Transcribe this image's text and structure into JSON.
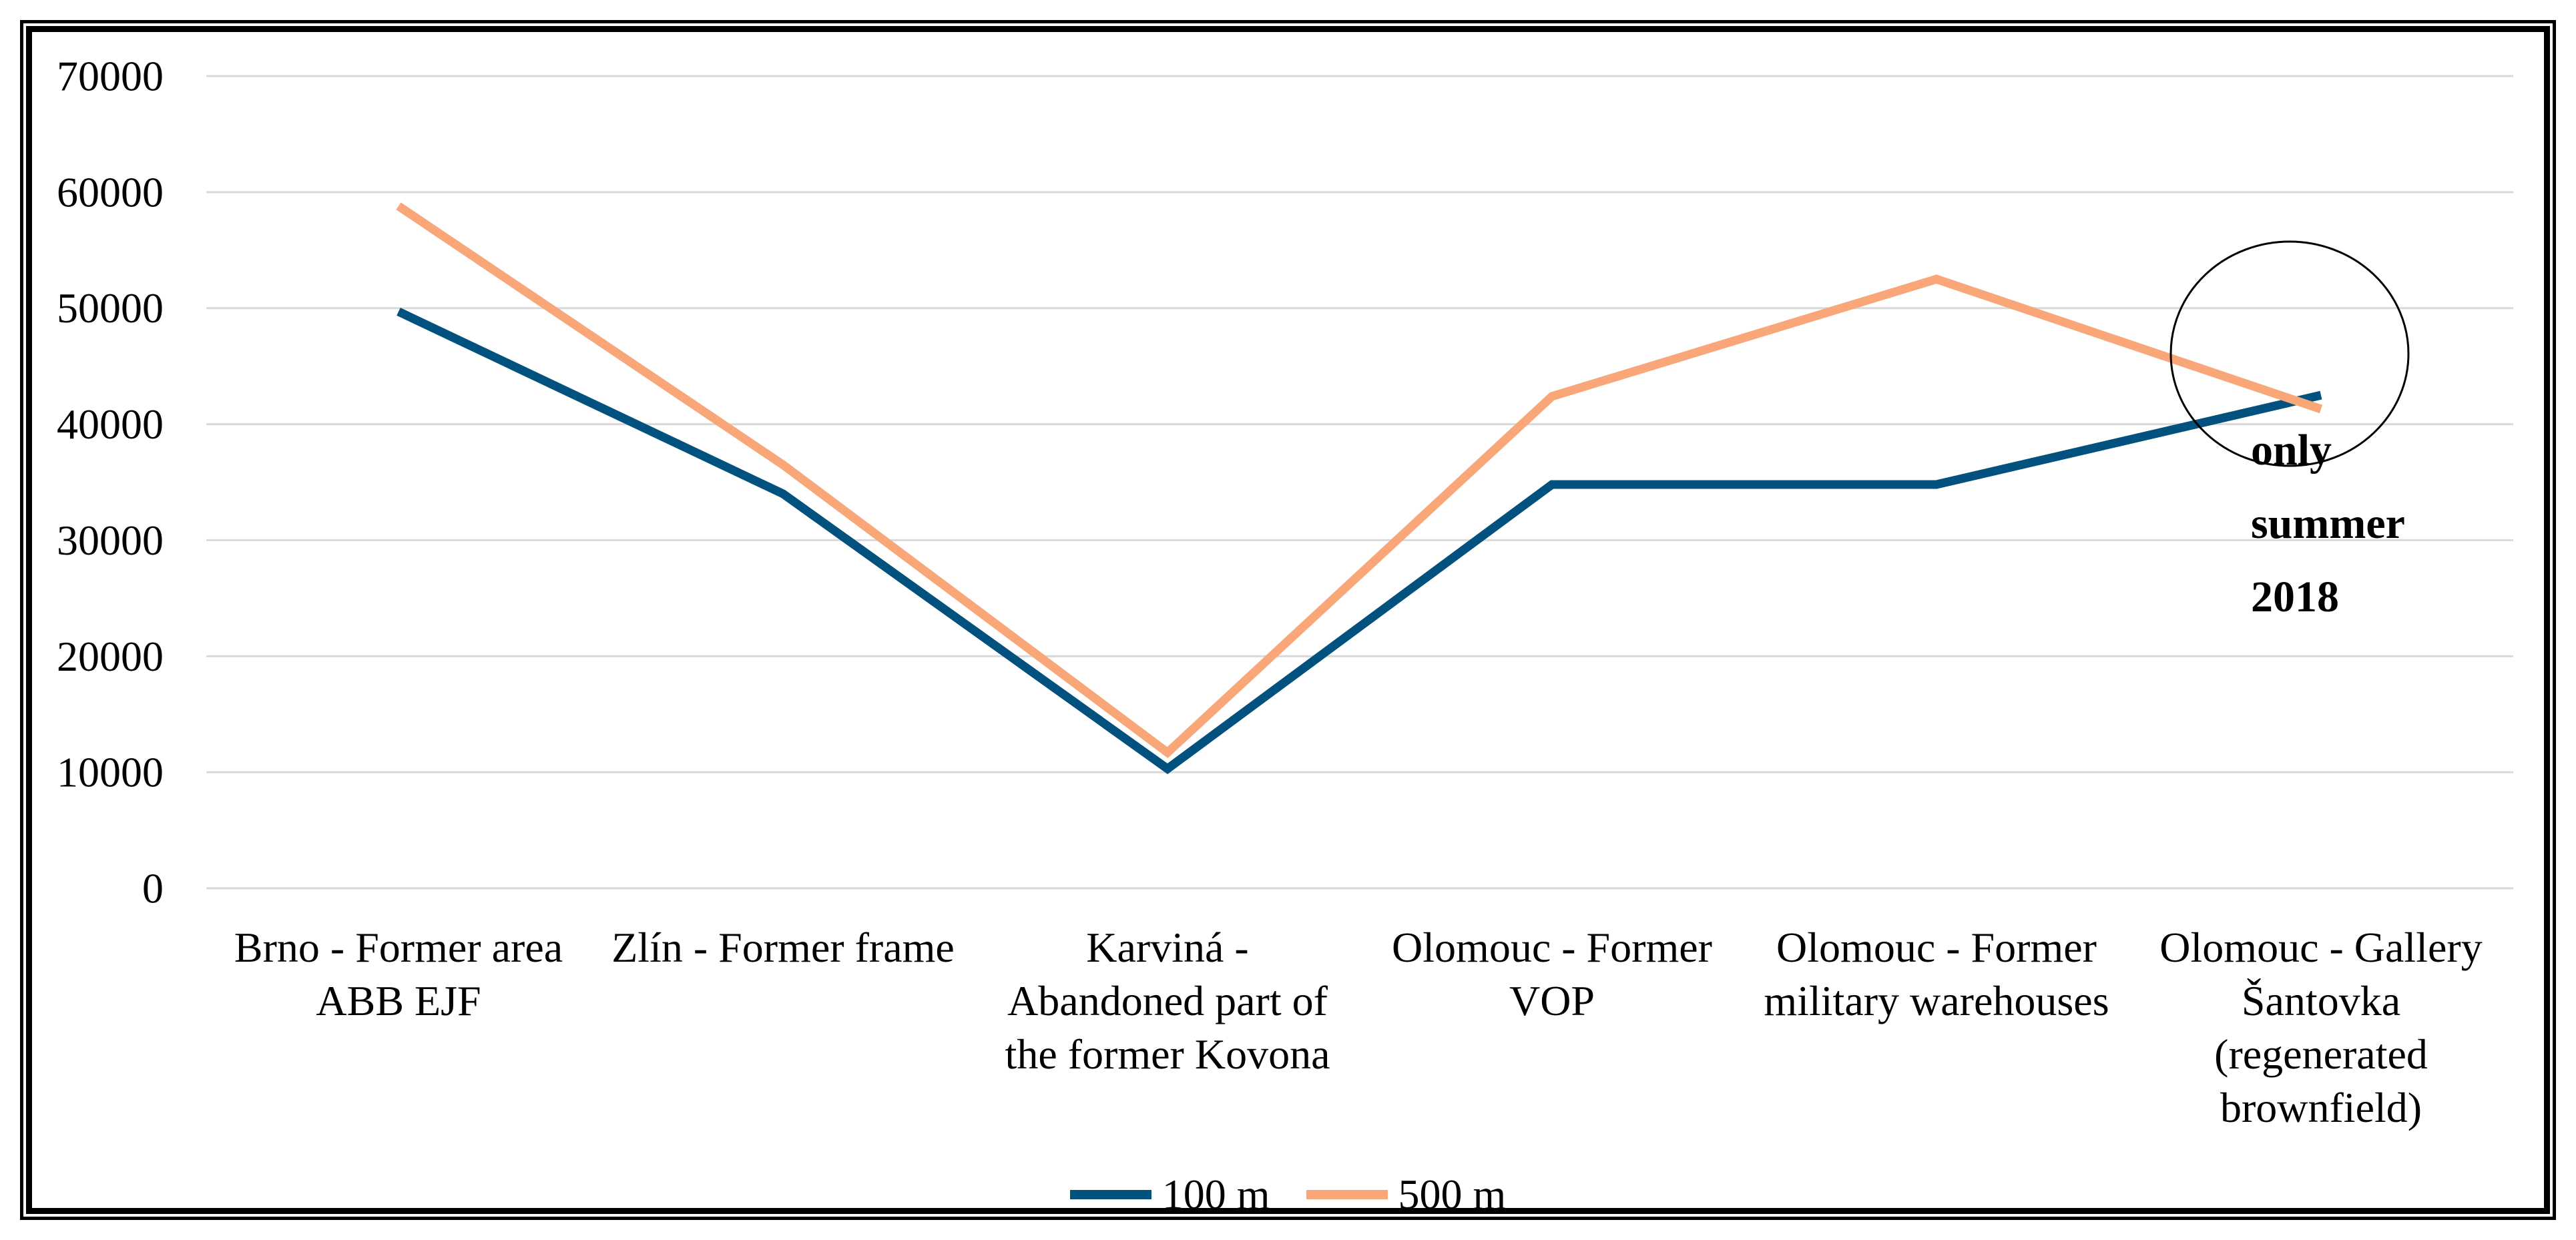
{
  "chart_data": {
    "type": "line",
    "title": "",
    "xlabel": "",
    "ylabel": "",
    "categories": [
      "Brno - Former area ABB EJF",
      "Zlín - Former frame",
      "Karviná - Abandoned part of the former Kovona",
      "Olomouc - Former VOP",
      "Olomouc - Former military warehouses",
      "Olomouc - Gallery Šantovka (regenerated brownfield)"
    ],
    "category_lines": [
      [
        "Brno - Former area",
        "ABB EJF"
      ],
      [
        "Zlín - Former frame"
      ],
      [
        "Karviná -",
        "Abandoned part of",
        "the former Kovona"
      ],
      [
        "Olomouc - Former",
        "VOP"
      ],
      [
        "Olomouc - Former",
        "military warehouses"
      ],
      [
        "Olomouc - Gallery",
        "Šantovka",
        "(regenerated",
        "brownfield)"
      ]
    ],
    "series": [
      {
        "name": "100 m",
        "color": "#02517E",
        "values": [
          49700,
          34000,
          10300,
          34800,
          34800,
          42500
        ]
      },
      {
        "name": "500 m",
        "color": "#F9A678",
        "values": [
          58800,
          36500,
          11700,
          42400,
          52500,
          41300
        ]
      }
    ],
    "ylim": [
      0,
      70000
    ],
    "ytick_step": 10000,
    "yticks": [
      "0",
      "10000",
      "20000",
      "30000",
      "40000",
      "50000",
      "60000",
      "70000"
    ],
    "grid": "horizontal-only",
    "legend_position": "bottom-center"
  },
  "annotation": {
    "lines": [
      "only",
      "summer",
      "2018"
    ],
    "meaning": "circle highlighting last data points"
  },
  "colors": {
    "series_100m": "#02517E",
    "series_500m": "#F9A678",
    "gridline": "#D9D9D9",
    "text": "#000000",
    "frame": "#000000",
    "background": "#FFFFFF"
  }
}
